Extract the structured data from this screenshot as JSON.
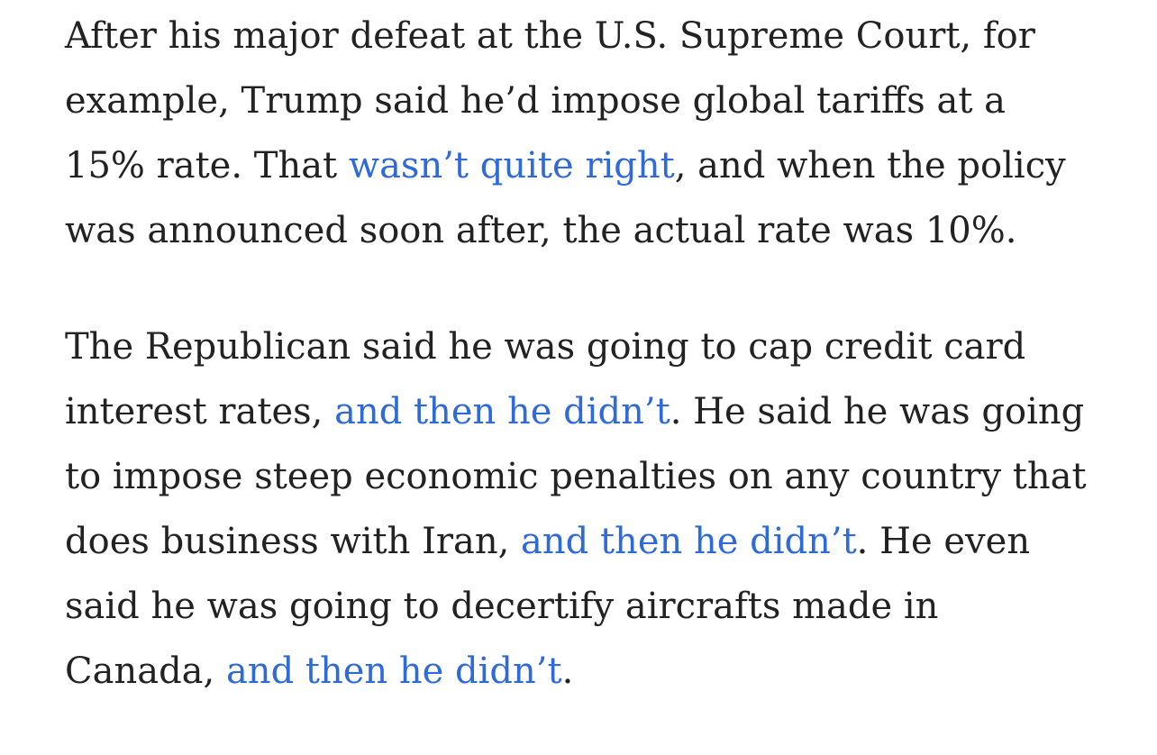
{
  "article": {
    "paragraphs": [
      {
        "runs": [
          {
            "text": "After his major defeat at the U.S. Supreme Court, for example, Trump said he’d impose global tariffs at a 15% rate. That "
          },
          {
            "link": "wasn’t quite right"
          },
          {
            "text": ", and when the policy was announced soon after, the actual rate was 10%."
          }
        ]
      },
      {
        "runs": [
          {
            "text": "The Republican said he was going to cap credit card interest rates, "
          },
          {
            "link": "and then he didn’t"
          },
          {
            "text": ". He said he was going to impose steep economic penalties on any country that does business with Iran, "
          },
          {
            "link": "and then he didn’t"
          },
          {
            "text": ". He even said he was going to decertify aircrafts made in Canada, "
          },
          {
            "link": "and then he didn’t"
          },
          {
            "text": "."
          }
        ]
      }
    ]
  }
}
